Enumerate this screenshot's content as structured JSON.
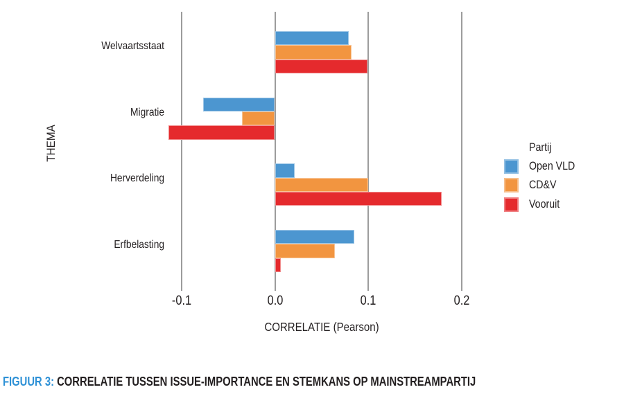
{
  "figure": {
    "caption_label": "FIGUUR 3:",
    "caption_text": " CORRELATIE TUSSEN ISSUE-IMPORTANCE EN STEMKANS OP MAINSTREAMPARTIJ"
  },
  "chart_data": {
    "type": "bar",
    "orientation": "horizontal",
    "title": "",
    "xlabel": "CORRELATIE (Pearson)",
    "ylabel": "THEMA",
    "categories": [
      "Welvaartsstaat",
      "Migratie",
      "Herverdeling",
      "Erfbelasting"
    ],
    "series": [
      {
        "name": "Open VLD",
        "color": "#4C96D0",
        "values": [
          0.079,
          -0.077,
          0.021,
          0.085
        ]
      },
      {
        "name": "CD&V",
        "color": "#F29540",
        "values": [
          0.082,
          -0.035,
          0.1,
          0.064
        ]
      },
      {
        "name": "Vooruit",
        "color": "#E52A2D",
        "values": [
          0.099,
          -0.114,
          0.179,
          0.006
        ]
      }
    ],
    "x_ticks": [
      {
        "value": -0.1,
        "label": "-0.1"
      },
      {
        "value": 0.0,
        "label": "0.0"
      },
      {
        "value": 0.1,
        "label": "0.1"
      },
      {
        "value": 0.2,
        "label": "0.2"
      }
    ],
    "xlim": [
      -0.12,
      0.21
    ],
    "legend_title": "Partij",
    "legend_position": "right",
    "grid": "vertical gridlines only",
    "background": "#FFFFFF"
  },
  "colors": {
    "gridline": "#9C9C9C",
    "text": "#231F20",
    "caption_accent": "#2E91D6"
  }
}
